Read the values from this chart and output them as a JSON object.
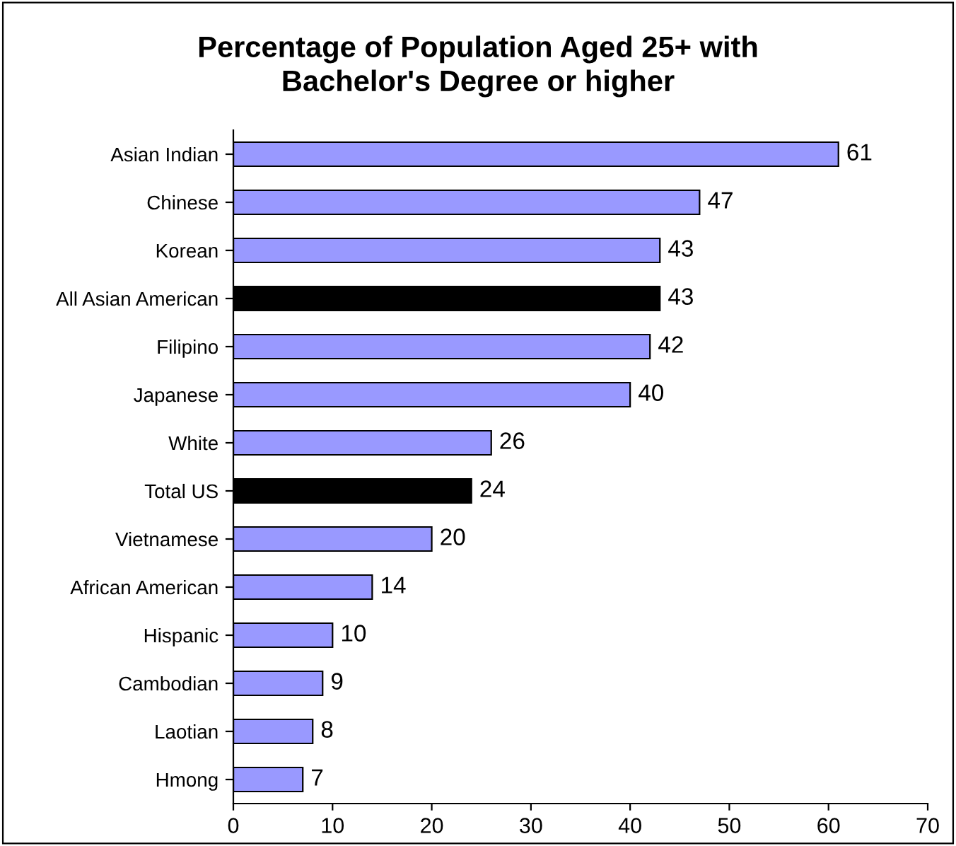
{
  "chart_data": {
    "type": "bar",
    "orientation": "horizontal",
    "title": "Percentage of Population Aged 25+ with\nBachelor's Degree or higher",
    "categories": [
      "Asian Indian",
      "Chinese",
      "Korean",
      "All Asian American",
      "Filipino",
      "Japanese",
      "White",
      "Total US",
      "Vietnamese",
      "African American",
      "Hispanic",
      "Cambodian",
      "Laotian",
      "Hmong"
    ],
    "values": [
      61,
      47,
      43,
      43,
      42,
      40,
      26,
      24,
      20,
      14,
      10,
      9,
      8,
      7
    ],
    "colors": [
      "#9999ff",
      "#9999ff",
      "#9999ff",
      "#000000",
      "#9999ff",
      "#9999ff",
      "#9999ff",
      "#000000",
      "#9999ff",
      "#9999ff",
      "#9999ff",
      "#9999ff",
      "#9999ff",
      "#9999ff"
    ],
    "xlim": [
      0,
      70
    ],
    "xticks": [
      0,
      10,
      20,
      30,
      40,
      50,
      60,
      70
    ],
    "data_labels": true
  }
}
